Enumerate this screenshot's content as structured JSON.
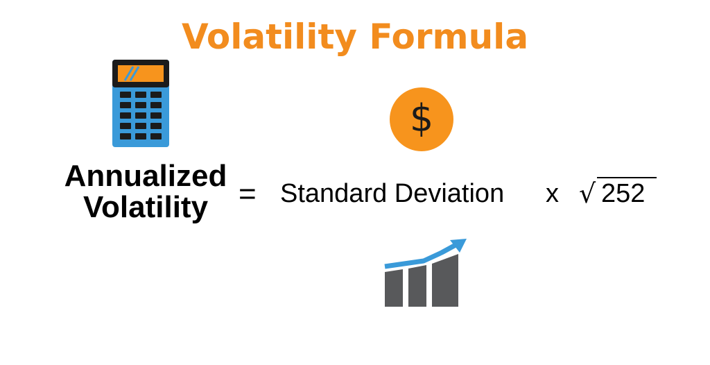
{
  "title": "Volatility Formula",
  "colors": {
    "title": "#f28c1e",
    "orange": "#f7941d",
    "blue": "#3a9ad9",
    "dark_gray": "#58595b",
    "black": "#000000"
  },
  "formula": {
    "lhs_line1": "Annualized",
    "lhs_line2": "Volatility",
    "equals": "=",
    "term1": "Standard Deviation",
    "operator": "x",
    "sqrt_symbol": "√",
    "radicand": "252"
  },
  "icons": {
    "calculator": "calculator-icon",
    "dollar": "dollar-coin-icon",
    "dollar_glyph": "$",
    "growth": "bar-chart-growth-icon"
  }
}
